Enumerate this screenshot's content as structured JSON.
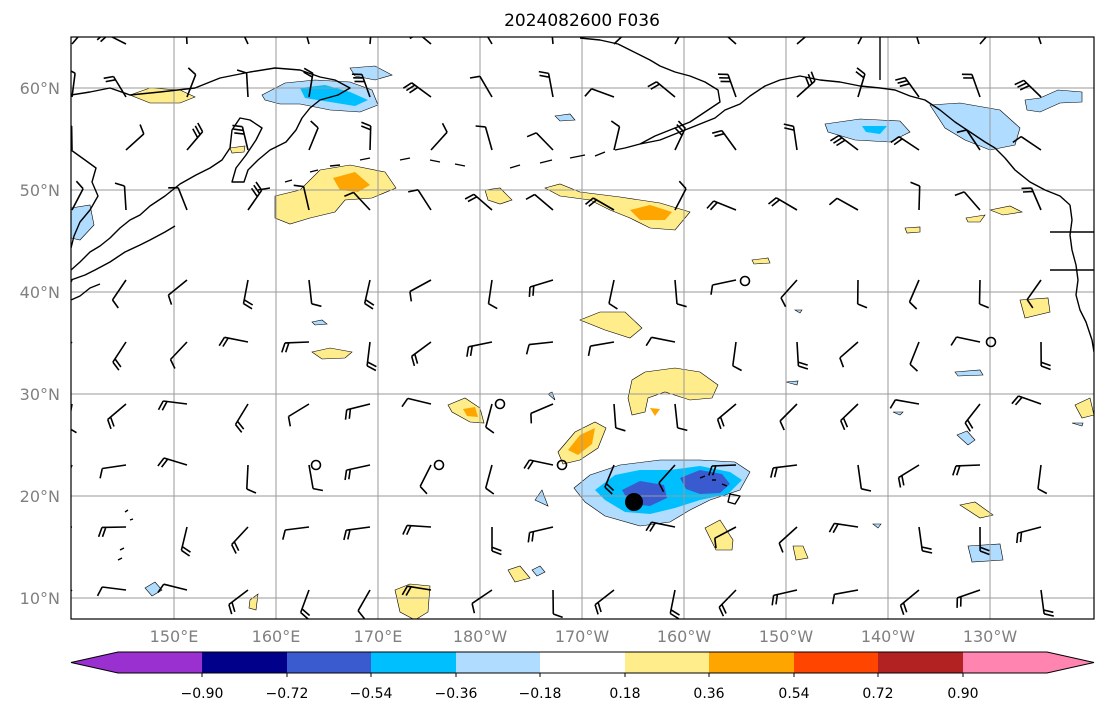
{
  "title": "2024082600 F036",
  "y_labels": [
    "60°N",
    "50°N",
    "40°N",
    "30°N",
    "20°N",
    "10°N"
  ],
  "x_labels": [
    "150°E",
    "160°E",
    "170°E",
    "180°W",
    "170°W",
    "160°W",
    "150°W",
    "140°W",
    "130°W"
  ],
  "colorbar": {
    "tick_labels": [
      "−0.90",
      "−0.72",
      "−0.54",
      "−0.36",
      "−0.18",
      "0.18",
      "0.36",
      "0.54",
      "0.72",
      "0.90"
    ],
    "colors": [
      "#9b30d0",
      "#00008b",
      "#3a5bd0",
      "#00bfff",
      "#b0dcff",
      "#ffffff",
      "#ffec8b",
      "#ffa500",
      "#ff4500",
      "#b22222",
      "#ff85b0"
    ]
  },
  "field_colors": {
    "pos1": "#ffec8b",
    "pos2": "#ffa500",
    "neg1": "#b0dcff",
    "neg2": "#00bfff",
    "neg3": "#3a5bd0"
  },
  "map": {
    "lon_range": [
      "140°E",
      "120°W"
    ],
    "lat_range": [
      "8°N",
      "65°N"
    ]
  }
}
